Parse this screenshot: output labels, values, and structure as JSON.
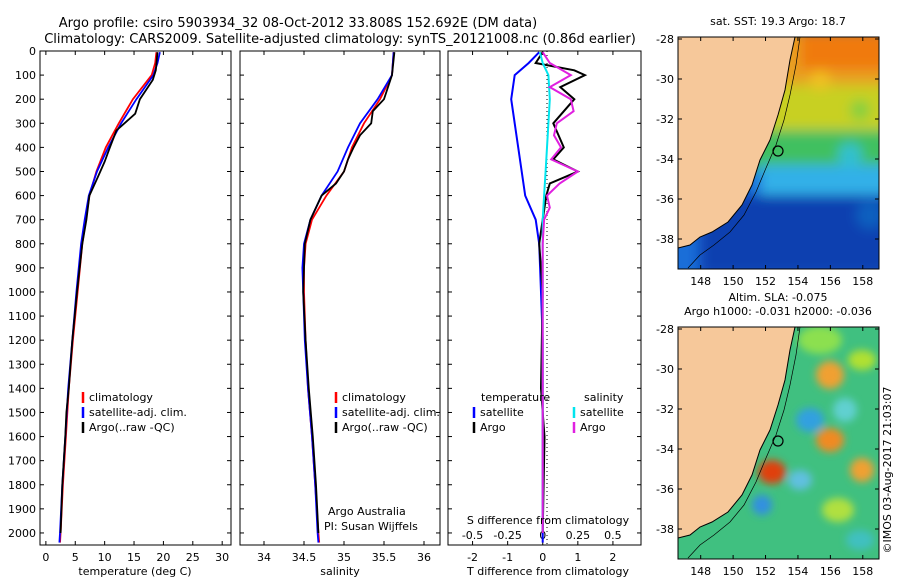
{
  "header": {
    "line1": "Argo profile: csiro 5903934_32 08-Oct-2012 33.808S 152.692E (DM data)",
    "line2": "Climatology: CARS2009. Satellite-adjusted climatology: synTS_20121008.nc (0.86d earlier)"
  },
  "colors": {
    "climatology": "#ff0000",
    "satellite": "#0000ff",
    "argo": "#000000",
    "sat_t": "#0000ff",
    "sat_s": "#00e5ee",
    "argo_s": "#e020e0"
  },
  "chart_data": [
    {
      "type": "line",
      "name": "temperature-profile",
      "xlabel": "temperature (deg C)",
      "ylabel": "",
      "xlim": [
        -1,
        31.5
      ],
      "ylim": [
        2050,
        0
      ],
      "xticks": [
        "0",
        "5",
        "10",
        "15",
        "20",
        "25",
        "30"
      ],
      "yticks": [
        "0",
        "100",
        "200",
        "300",
        "400",
        "500",
        "600",
        "700",
        "800",
        "900",
        "1000",
        "1100",
        "1200",
        "1300",
        "1400",
        "1500",
        "1600",
        "1700",
        "1800",
        "1900",
        "2000"
      ],
      "legend": [
        "climatology",
        "satellite-adj. clim.",
        "Argo(..raw -QC)"
      ],
      "series": [
        {
          "name": "climatology",
          "depth": [
            5,
            50,
            100,
            200,
            300,
            400,
            500,
            600,
            700,
            800,
            1000,
            1200,
            1400,
            1600,
            1800,
            2000,
            2040
          ],
          "values": [
            18.8,
            18.6,
            18.0,
            14.8,
            12.4,
            10.2,
            8.6,
            7.4,
            6.8,
            6.2,
            5.4,
            4.6,
            3.9,
            3.4,
            2.9,
            2.5,
            2.4
          ]
        },
        {
          "name": "satellite-adj. clim.",
          "depth": [
            5,
            50,
            100,
            200,
            300,
            400,
            500,
            600,
            700,
            800,
            1000,
            1200,
            1400,
            1600,
            1800,
            2000,
            2040
          ],
          "values": [
            19.4,
            19.0,
            18.3,
            15.4,
            12.8,
            10.6,
            8.7,
            7.3,
            6.6,
            6.0,
            5.2,
            4.5,
            3.8,
            3.3,
            2.8,
            2.4,
            2.3
          ]
        },
        {
          "name": "Argo(..raw -QC)",
          "depth": [
            5,
            80,
            120,
            200,
            260,
            330,
            400,
            460,
            520,
            600,
            700,
            800,
            1000,
            1200,
            1400,
            1500,
            1600,
            1800,
            2000
          ],
          "values": [
            19.0,
            18.7,
            18.2,
            16.0,
            15.2,
            12.0,
            10.9,
            10.0,
            8.9,
            7.4,
            6.9,
            6.2,
            5.3,
            4.5,
            3.9,
            3.5,
            3.3,
            2.8,
            2.5
          ]
        }
      ]
    },
    {
      "type": "line",
      "name": "salinity-profile",
      "xlabel": "salinity",
      "ylabel": "",
      "xlim": [
        33.7,
        36.2
      ],
      "ylim": [
        2050,
        0
      ],
      "xticks": [
        "34",
        "34.5",
        "35",
        "35.5",
        "36"
      ],
      "legend": [
        "climatology",
        "satellite-adj. clim.",
        "Argo(..raw -QC)"
      ],
      "annotations": [
        "Argo Australia",
        "PI: Susan Wijffels"
      ],
      "series": [
        {
          "name": "climatology",
          "depth": [
            5,
            100,
            200,
            300,
            400,
            500,
            600,
            700,
            800,
            900,
            1000,
            1200,
            1400,
            1600,
            1800,
            2000,
            2040
          ],
          "values": [
            35.62,
            35.6,
            35.45,
            35.25,
            35.1,
            35.0,
            34.78,
            34.6,
            34.52,
            34.5,
            34.5,
            34.52,
            34.55,
            34.6,
            34.64,
            34.68,
            34.69
          ]
        },
        {
          "name": "satellite-adj. clim.",
          "depth": [
            5,
            100,
            200,
            300,
            400,
            500,
            600,
            700,
            800,
            900,
            1000,
            1200,
            1400,
            1600,
            1800,
            2000,
            2040
          ],
          "values": [
            35.62,
            35.6,
            35.42,
            35.2,
            35.05,
            34.92,
            34.72,
            34.58,
            34.5,
            34.48,
            34.49,
            34.51,
            34.55,
            34.6,
            34.64,
            34.67,
            34.68
          ]
        },
        {
          "name": "Argo(..raw -QC)",
          "depth": [
            5,
            100,
            150,
            200,
            250,
            300,
            350,
            400,
            450,
            500,
            550,
            600,
            700,
            800,
            1000,
            1200,
            1400,
            1600,
            1800,
            2000
          ],
          "values": [
            35.63,
            35.6,
            35.55,
            35.5,
            35.36,
            35.34,
            35.2,
            35.12,
            35.05,
            35.0,
            34.9,
            34.72,
            34.58,
            34.51,
            34.49,
            34.52,
            34.56,
            34.61,
            34.65,
            34.68
          ]
        }
      ]
    },
    {
      "type": "line",
      "name": "difference-profile",
      "xlabel": "T difference from climatology",
      "xlabel2": "S difference from climatology",
      "xlim": [
        -2.7,
        2.8
      ],
      "ylim": [
        2050,
        0
      ],
      "xticks": [
        "-2",
        "-1",
        "0",
        "1",
        "2"
      ],
      "xticks_s": [
        "-0.5",
        "-0.25",
        "0",
        "0.25",
        "0.5"
      ],
      "legend_t": {
        "title": "temperature",
        "items": [
          "satellite",
          "Argo"
        ]
      },
      "legend_s": {
        "title": "salinity",
        "items": [
          "satellite",
          "Argo"
        ]
      },
      "series": [
        {
          "name": "T satellite",
          "depth": [
            5,
            50,
            100,
            200,
            300,
            400,
            500,
            600,
            700,
            800,
            1000,
            1200,
            1600,
            2000,
            2040
          ],
          "values": [
            -0.1,
            -0.4,
            -0.8,
            -0.9,
            -0.8,
            -0.7,
            -0.6,
            -0.5,
            -0.2,
            -0.1,
            -0.05,
            0,
            0,
            0,
            0
          ]
        },
        {
          "name": "T Argo",
          "depth": [
            5,
            50,
            80,
            100,
            150,
            200,
            300,
            400,
            450,
            500,
            550,
            600,
            700,
            800,
            1000,
            1400,
            1500,
            1600,
            2000
          ],
          "values": [
            0,
            -0.2,
            0.9,
            1.2,
            0.5,
            0.9,
            0.3,
            0.6,
            0.3,
            1.0,
            0.2,
            0.1,
            0,
            -0.1,
            0,
            -0.05,
            0,
            0.05,
            0
          ]
        },
        {
          "name": "S satellite",
          "depth": [
            5,
            50,
            100,
            200,
            300,
            400,
            500,
            600,
            700,
            800,
            1000,
            2000
          ],
          "values": [
            -0.02,
            0.0,
            0.04,
            0.05,
            0.04,
            0.03,
            0.02,
            0.01,
            0.0,
            0.0,
            0.0,
            0.0
          ]
        },
        {
          "name": "S Argo",
          "depth": [
            5,
            50,
            100,
            150,
            200,
            250,
            300,
            350,
            400,
            450,
            500,
            550,
            600,
            650,
            700,
            800,
            1000,
            2000
          ],
          "values": [
            0.0,
            0.05,
            0.2,
            0.05,
            0.2,
            0.22,
            0.1,
            0.08,
            0.13,
            0.06,
            0.25,
            0.12,
            0.03,
            0.05,
            0.01,
            0.0,
            0.0,
            0.0
          ]
        }
      ]
    }
  ],
  "maps": {
    "sst_title": "sat. SST: 19.3 Argo: 18.7",
    "sla_title1": "Altim. SLA: -0.075",
    "sla_title2": "Argo h1000: -0.031 h2000: -0.036",
    "lat_ticks": [
      "-28",
      "-30",
      "-32",
      "-34",
      "-36",
      "-38"
    ],
    "lon_ticks": [
      "148",
      "150",
      "152",
      "154",
      "156",
      "158"
    ]
  },
  "footer": {
    "stamp": "©IMOS 03-Aug-2017 21:03:07"
  }
}
